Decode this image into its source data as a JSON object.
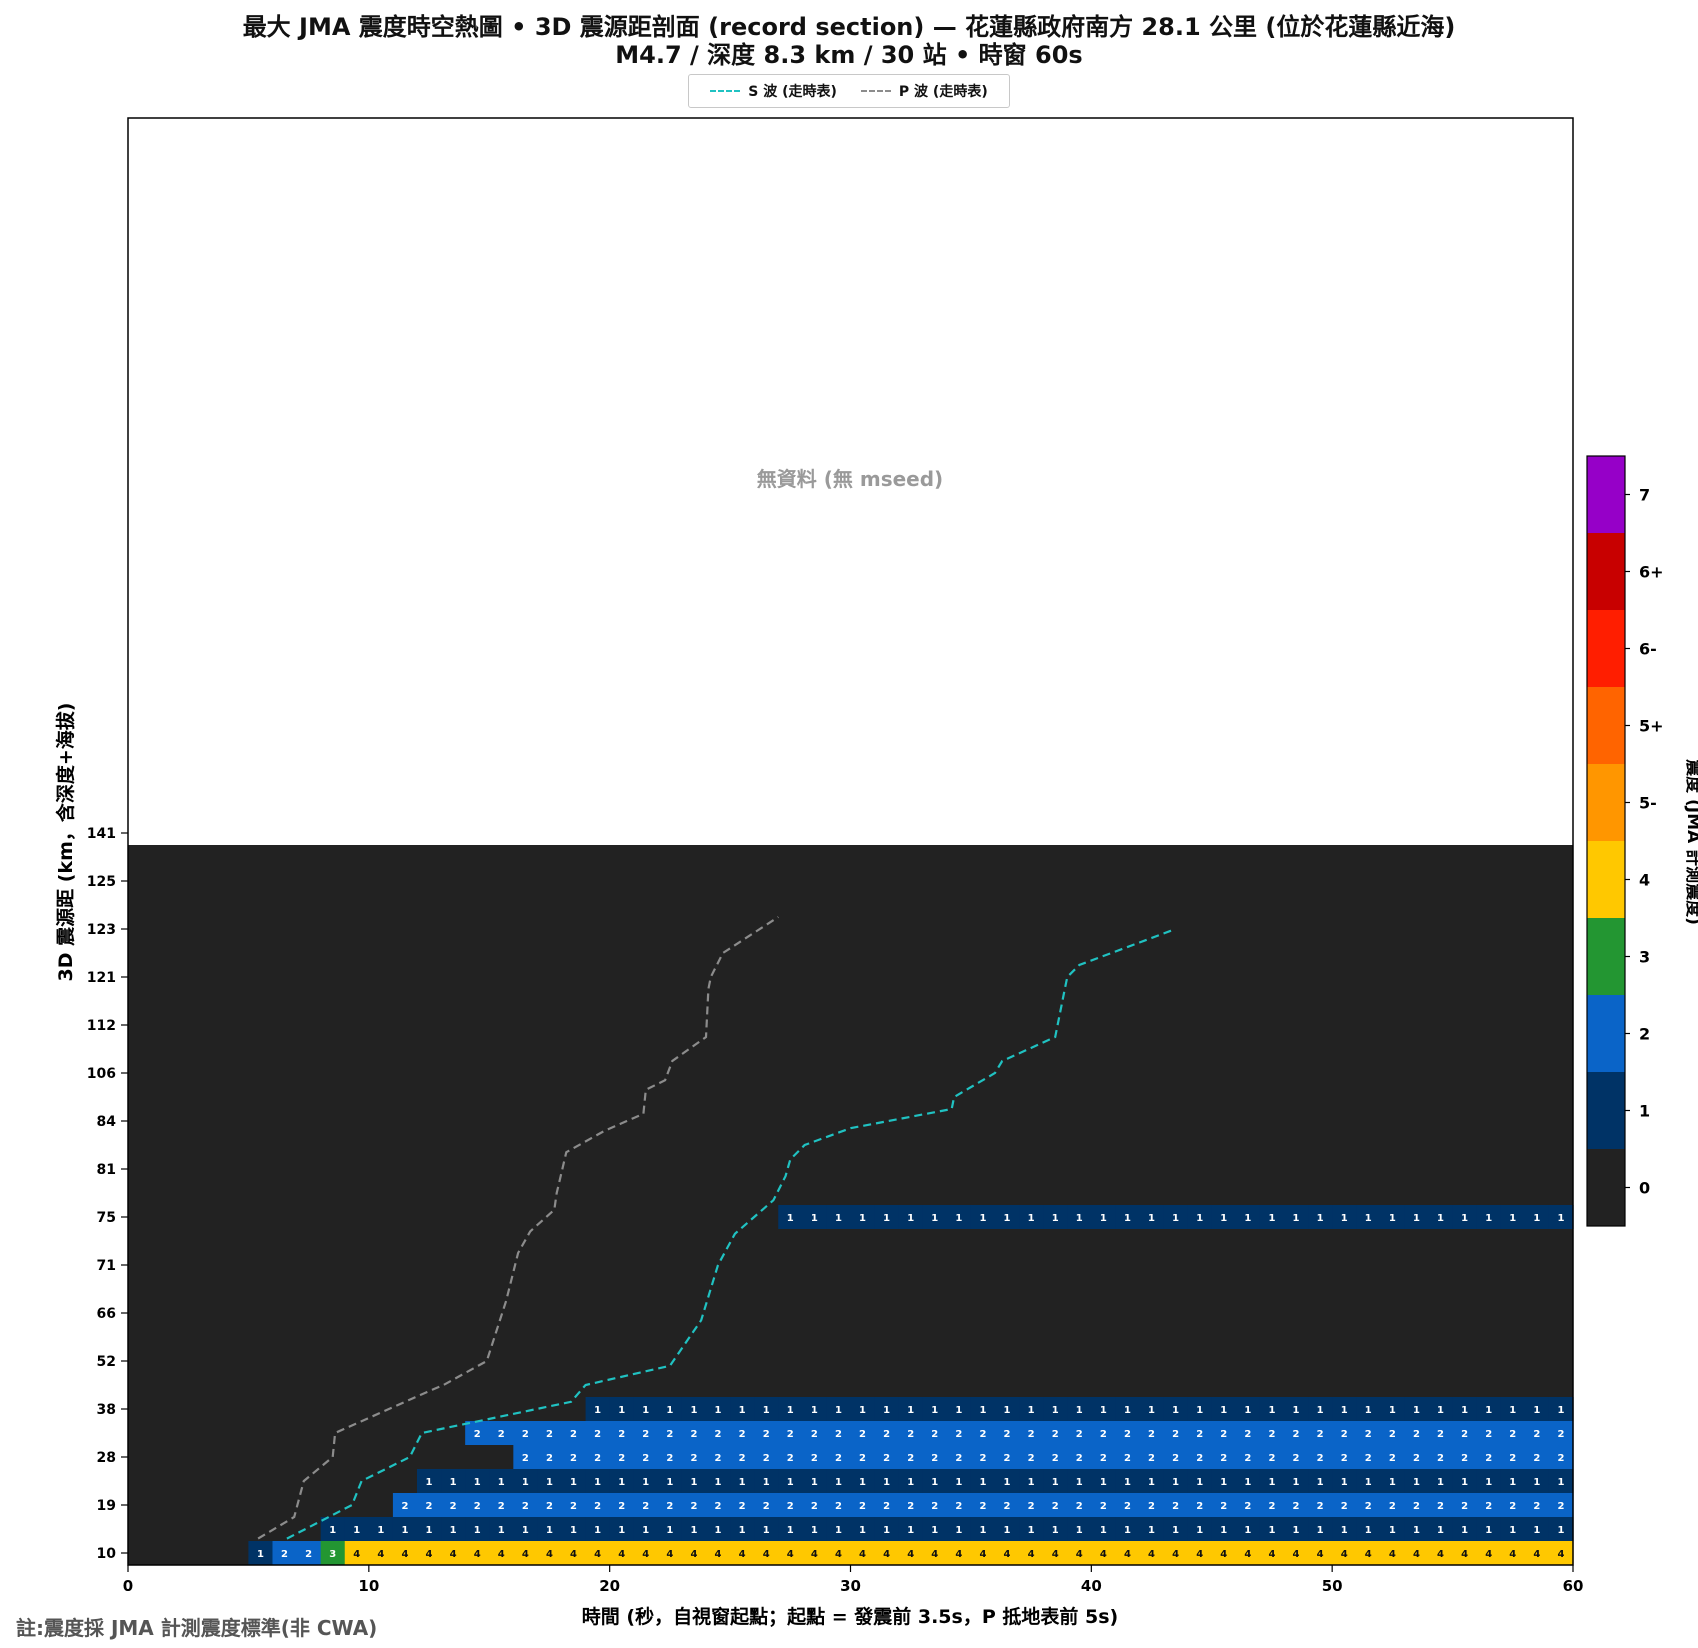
{
  "chart_data": {
    "type": "heatmap",
    "title": "最大 JMA 震度時空熱圖 • 3D 震源距剖面 (record section) — 花蓮縣政府南方 28.1 公里 (位於花蓮縣近海)",
    "subtitle": "M4.7 / 深度 8.3 km / 30 站 • 時窗 60s",
    "xlabel": "時間 (秒，自視窗起點；起點 = 發震前 3.5s，P 抵地表前 5s)",
    "ylabel": "3D 震源距 (km，含深度+海拔)",
    "xlim": [
      0,
      60
    ],
    "x_ticks": [
      0,
      10,
      20,
      30,
      40,
      50,
      60
    ],
    "y_tick_labels": [
      "10",
      "19",
      "28",
      "38",
      "52",
      "66",
      "71",
      "75",
      "81",
      "84",
      "106",
      "112",
      "121",
      "123",
      "125",
      "141"
    ],
    "no_data_label": "無資料 (無 mseed)",
    "background_color": "#222222",
    "legend": [
      {
        "name": "S 波 (走時表)",
        "color": "#20c2c2"
      },
      {
        "name": "P 波 (走時表)",
        "color": "#8c8c8c"
      }
    ],
    "colorbar": {
      "label": "震度 (JMA 計測震度)",
      "levels": [
        "0",
        "1",
        "2",
        "3",
        "4",
        "5-",
        "5+",
        "6-",
        "6+",
        "7"
      ],
      "colors": [
        "#222222",
        "#003366",
        "#0a64c8",
        "#239632",
        "#ffc800",
        "#ff9600",
        "#ff6400",
        "#ff1e00",
        "#c80000",
        "#9600c8"
      ]
    },
    "rows": [
      {
        "row": 0,
        "steps": [
          [
            5,
            "1"
          ],
          [
            6,
            "2"
          ],
          [
            8,
            "3"
          ],
          [
            9,
            "4"
          ]
        ]
      },
      {
        "row": 1,
        "steps": [
          [
            8,
            "1"
          ]
        ]
      },
      {
        "row": 2,
        "steps": [
          [
            11,
            "2"
          ]
        ]
      },
      {
        "row": 3,
        "steps": [
          [
            12,
            "1"
          ]
        ]
      },
      {
        "row": 4,
        "steps": [
          [
            16,
            "2"
          ]
        ]
      },
      {
        "row": 5,
        "steps": [
          [
            14,
            "2"
          ]
        ]
      },
      {
        "row": 6,
        "steps": [
          [
            19,
            "1"
          ]
        ]
      },
      {
        "row": 14,
        "steps": [
          [
            27,
            "1"
          ]
        ]
      }
    ],
    "s_wave": [
      [
        6.6,
        0.6
      ],
      [
        9.3,
        2.0
      ],
      [
        9.7,
        3.0
      ],
      [
        11.7,
        4.0
      ],
      [
        12.2,
        5.0
      ],
      [
        18.4,
        6.3
      ],
      [
        19.0,
        7.0
      ],
      [
        22.5,
        7.8
      ],
      [
        23.8,
        9.7
      ],
      [
        24.5,
        12.0
      ],
      [
        25.2,
        13.3
      ],
      [
        26.8,
        14.7
      ],
      [
        27.3,
        15.7
      ],
      [
        27.5,
        16.4
      ],
      [
        28.1,
        17.0
      ],
      [
        30.0,
        17.7
      ],
      [
        34.2,
        18.5
      ],
      [
        34.3,
        19.0
      ],
      [
        36.0,
        20.0
      ],
      [
        36.3,
        20.5
      ],
      [
        38.5,
        21.5
      ],
      [
        38.9,
        23.5
      ],
      [
        39.0,
        24.0
      ],
      [
        39.5,
        24.5
      ],
      [
        43.5,
        26.0
      ]
    ],
    "p_wave": [
      [
        5.4,
        0.6
      ],
      [
        6.9,
        1.5
      ],
      [
        7.3,
        3.0
      ],
      [
        8.5,
        4.0
      ],
      [
        8.6,
        5.0
      ],
      [
        12.4,
        6.7
      ],
      [
        13.1,
        7.0
      ],
      [
        14.9,
        8.0
      ],
      [
        15.7,
        10.5
      ],
      [
        16.2,
        12.5
      ],
      [
        16.7,
        13.4
      ],
      [
        17.7,
        14.3
      ],
      [
        17.8,
        15.0
      ],
      [
        18.2,
        16.7
      ],
      [
        19.8,
        17.6
      ],
      [
        21.4,
        18.3
      ],
      [
        21.5,
        19.3
      ],
      [
        22.3,
        19.7
      ],
      [
        22.6,
        20.5
      ],
      [
        24.0,
        21.5
      ],
      [
        24.1,
        23.5
      ],
      [
        24.2,
        24.0
      ],
      [
        24.7,
        25.0
      ],
      [
        27.0,
        26.5
      ]
    ]
  },
  "footnote": "註:震度採 JMA 計測震度標準(非 CWA)"
}
